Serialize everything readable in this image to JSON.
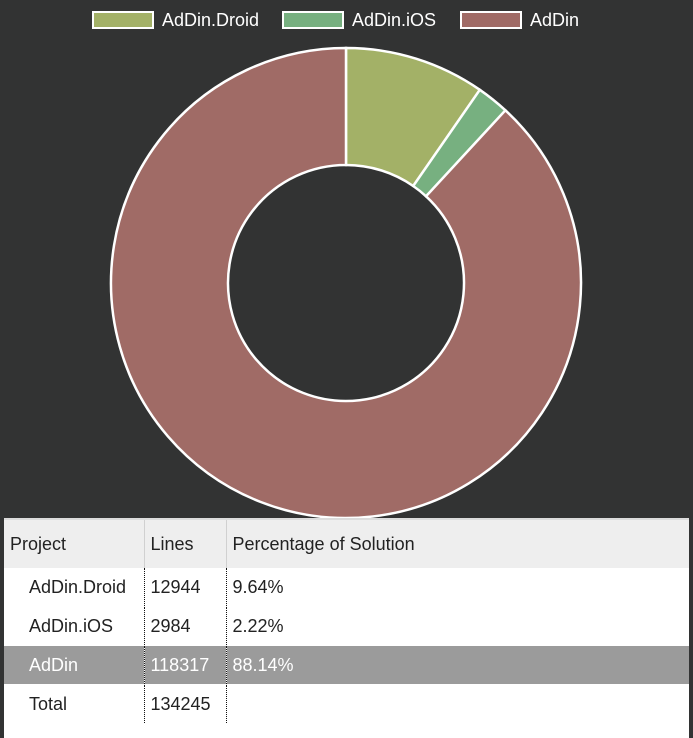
{
  "chart_data": {
    "type": "pie",
    "donut": true,
    "legend_position": "top",
    "series": [
      {
        "name": "AdDin.Droid",
        "value": 12944,
        "color": "#a3b167"
      },
      {
        "name": "AdDin.iOS",
        "value": 2984,
        "color": "#77b080"
      },
      {
        "name": "AdDin",
        "value": 118317,
        "color": "#a06b66"
      }
    ],
    "slice_border_color": "#ffffff",
    "background": "#323333"
  },
  "table": {
    "headers": [
      "Project",
      "Lines",
      "Percentage of Solution"
    ],
    "rows": [
      {
        "project": "AdDin.Droid",
        "lines": "12944",
        "percent": "9.64%",
        "selected": false
      },
      {
        "project": "AdDin.iOS",
        "lines": "2984",
        "percent": "2.22%",
        "selected": false
      },
      {
        "project": "AdDin",
        "lines": "118317",
        "percent": "88.14%",
        "selected": true
      },
      {
        "project": "Total",
        "lines": "134245",
        "percent": "",
        "selected": false
      }
    ]
  }
}
